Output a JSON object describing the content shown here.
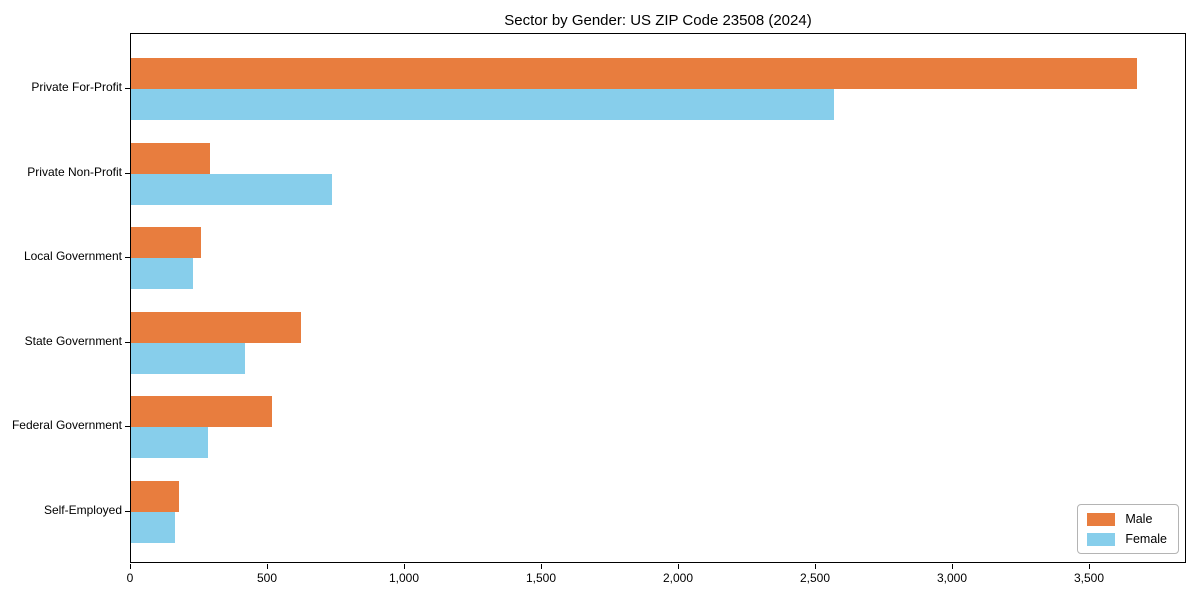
{
  "chart_data": {
    "type": "bar",
    "orientation": "horizontal",
    "title": "Sector by Gender: US ZIP Code 23508 (2024)",
    "categories": [
      "Private For-Profit",
      "Private Non-Profit",
      "Local Government",
      "State Government",
      "Federal Government",
      "Self-Employed"
    ],
    "series": [
      {
        "name": "Male",
        "color": "#e87d3e",
        "values": [
          3670,
          290,
          255,
          620,
          515,
          175
        ]
      },
      {
        "name": "Female",
        "color": "#87ceeb",
        "values": [
          2565,
          735,
          225,
          415,
          280,
          160
        ]
      }
    ],
    "xlabel": "",
    "ylabel": "",
    "xlim": [
      0,
      3854
    ],
    "x_ticks": [
      0,
      500,
      1000,
      1500,
      2000,
      2500,
      3000,
      3500
    ],
    "x_tick_labels": [
      "0",
      "500",
      "1,000",
      "1,500",
      "2,000",
      "2,500",
      "3,000",
      "3,500"
    ],
    "grid": false,
    "legend_position": "lower right"
  }
}
